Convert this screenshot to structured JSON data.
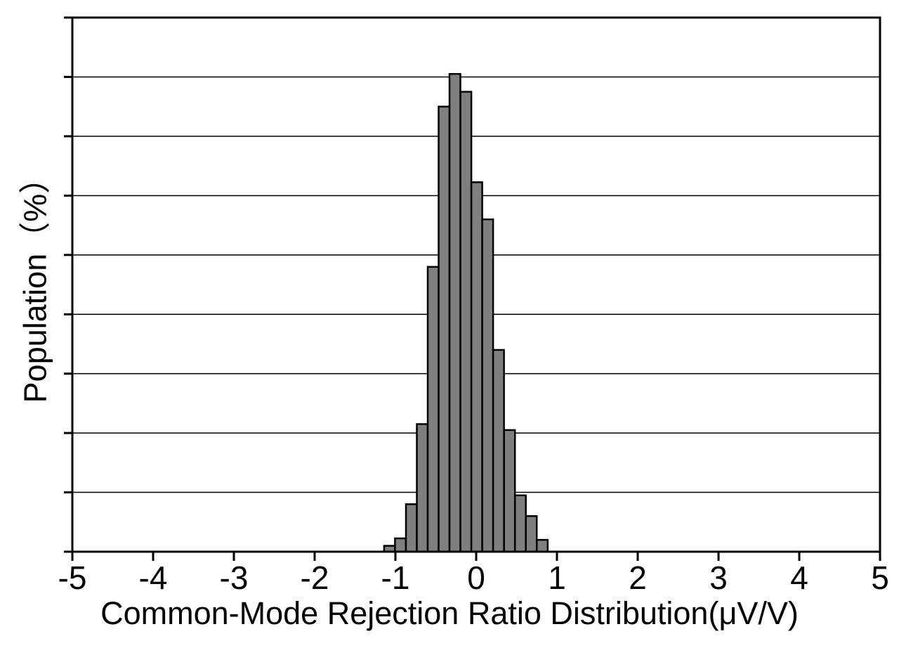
{
  "figure": {
    "background_color": "#ffffff",
    "text_color": "#000000"
  },
  "chart_data": {
    "type": "bar",
    "subtype": "histogram",
    "title": "",
    "xlabel": "Common-Mode Rejection Ratio Distribution(μV/V)",
    "ylabel": "Population（%）",
    "xlim": [
      -5,
      5
    ],
    "ylim": [
      0,
      18
    ],
    "x_ticks": [
      -5,
      -4,
      -3,
      -2,
      -1,
      0,
      1,
      2,
      3,
      4,
      5
    ],
    "y_tick_interval": 2,
    "y_tick_labels_shown": false,
    "grid": "horizontal",
    "legend": "none",
    "bar_fill_color": "#7f7f7f",
    "bar_border_color": "#000000",
    "axis_color": "#000000",
    "gridline_color": "#000000",
    "bin_edges": [
      -1.14,
      -1.005,
      -0.87,
      -0.735,
      -0.6,
      -0.465,
      -0.33,
      -0.195,
      -0.06,
      0.075,
      0.21,
      0.345,
      0.48,
      0.615,
      0.75,
      0.885
    ],
    "values": [
      0.2,
      0.45,
      1.6,
      4.3,
      9.6,
      15.0,
      16.1,
      15.5,
      12.45,
      11.2,
      6.8,
      4.1,
      1.9,
      1.2,
      0.4
    ],
    "values_unit": "population_percent",
    "values_note": "Bar heights read from gridlines; one gridline division = 2%"
  }
}
